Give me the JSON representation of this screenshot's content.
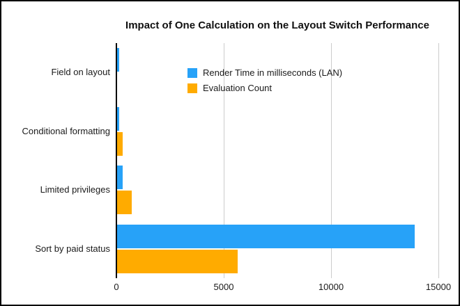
{
  "window": {
    "background_color": "#ffffff",
    "border_color": "#000000"
  },
  "chart_data": {
    "type": "bar",
    "orientation": "horizontal",
    "title": "Impact of One Calculation on the Layout Switch Performance",
    "categories": [
      "Field on layout",
      "Conditional formatting",
      "Limited privileges",
      "Sort by paid status"
    ],
    "series": [
      {
        "name": "Render Time in milliseconds (LAN)",
        "color": "#27A2F8",
        "values": [
          140,
          120,
          290,
          13900
        ]
      },
      {
        "name": "Evaluation Count",
        "color": "#FFAB00",
        "values": [
          0,
          280,
          700,
          5650
        ]
      }
    ],
    "xlabel": "",
    "ylabel": "",
    "xlim": [
      0,
      15000
    ],
    "x_ticks": [
      {
        "value": 0,
        "label": "0"
      },
      {
        "value": 5000,
        "label": "5000"
      },
      {
        "value": 10000,
        "label": "10000"
      },
      {
        "value": 15000,
        "label": "15000"
      }
    ],
    "grid": "vertical-only",
    "gridline_color": "#cccccc",
    "axis_color": "#000000",
    "text_color": "#1a1a1a",
    "legend_position": "inside-upper-left"
  }
}
